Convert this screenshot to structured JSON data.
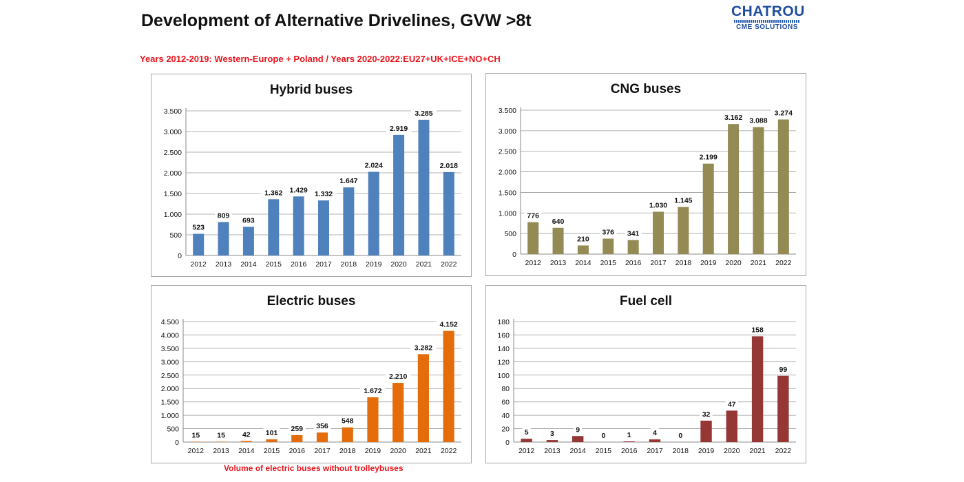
{
  "page": {
    "title": "Development of Alternative Drivelines, GVW >8t",
    "subtitle": "Years 2012-2019: Western-Europe + Poland / Years 2020-2022:EU27+UK+ICE+NO+CH",
    "footnote": "Volume of electric buses without trolleybuses"
  },
  "logo": {
    "name": "CHATROU",
    "tagline": "CME SOLUTIONS"
  },
  "chart_data": [
    {
      "type": "bar",
      "title": "Hybrid buses",
      "categories": [
        "2012",
        "2013",
        "2014",
        "2015",
        "2016",
        "2017",
        "2018",
        "2019",
        "2020",
        "2021",
        "2022"
      ],
      "values": [
        523,
        809,
        693,
        1362,
        1429,
        1332,
        1647,
        2024,
        2919,
        3285,
        2018
      ],
      "value_labels": [
        "523",
        "809",
        "693",
        "1.362",
        "1.429",
        "1.332",
        "1.647",
        "2.024",
        "2.919",
        "3.285",
        "2.018"
      ],
      "yticks": [
        0,
        500,
        1000,
        1500,
        2000,
        2500,
        3000,
        3500
      ],
      "ytick_labels": [
        "0",
        "500",
        "1.000",
        "1.500",
        "2.000",
        "2.500",
        "3.000",
        "3.500"
      ],
      "ylim": [
        0,
        3500
      ],
      "color": "#4f81bd",
      "xlabel": "",
      "ylabel": ""
    },
    {
      "type": "bar",
      "title": "CNG buses",
      "categories": [
        "2012",
        "2013",
        "2014",
        "2015",
        "2016",
        "2017",
        "2018",
        "2019",
        "2020",
        "2021",
        "2022"
      ],
      "values": [
        776,
        640,
        210,
        376,
        341,
        1030,
        1145,
        2199,
        3162,
        3088,
        3274
      ],
      "value_labels": [
        "776",
        "640",
        "210",
        "376",
        "341",
        "1.030",
        "1.145",
        "2.199",
        "3.162",
        "3.088",
        "3.274"
      ],
      "yticks": [
        0,
        500,
        1000,
        1500,
        2000,
        2500,
        3000,
        3500
      ],
      "ytick_labels": [
        "0",
        "500",
        "1.000",
        "1.500",
        "2.000",
        "2.500",
        "3.000",
        "3.500"
      ],
      "ylim": [
        0,
        3500
      ],
      "color": "#948a54",
      "xlabel": "",
      "ylabel": ""
    },
    {
      "type": "bar",
      "title": "Electric buses",
      "categories": [
        "2012",
        "2013",
        "2014",
        "2015",
        "2016",
        "2017",
        "2018",
        "2019",
        "2020",
        "2021",
        "2022"
      ],
      "values": [
        15,
        15,
        42,
        101,
        259,
        356,
        548,
        1672,
        2210,
        3282,
        4152
      ],
      "value_labels": [
        "15",
        "15",
        "42",
        "101",
        "259",
        "356",
        "548",
        "1.672",
        "2.210",
        "3.282",
        "4.152"
      ],
      "yticks": [
        0,
        500,
        1000,
        1500,
        2000,
        2500,
        3000,
        3500,
        4000,
        4500
      ],
      "ytick_labels": [
        "0",
        "500",
        "1.000",
        "1.500",
        "2.000",
        "2.500",
        "3.000",
        "3.500",
        "4.000",
        "4.500"
      ],
      "ylim": [
        0,
        4500
      ],
      "color": "#e46c0a",
      "xlabel": "",
      "ylabel": ""
    },
    {
      "type": "bar",
      "title": "Fuel cell",
      "categories": [
        "2012",
        "2013",
        "2014",
        "2015",
        "2016",
        "2017",
        "2018",
        "2019",
        "2020",
        "2021",
        "2022"
      ],
      "values": [
        5,
        3,
        9,
        0,
        1,
        4,
        0,
        32,
        47,
        158,
        99
      ],
      "value_labels": [
        "5",
        "3",
        "9",
        "0",
        "1",
        "4",
        "0",
        "32",
        "47",
        "158",
        "99"
      ],
      "yticks": [
        0,
        20,
        40,
        60,
        80,
        100,
        120,
        140,
        160,
        180
      ],
      "ytick_labels": [
        "0",
        "20",
        "40",
        "60",
        "80",
        "100",
        "120",
        "140",
        "160",
        "180"
      ],
      "ylim": [
        0,
        180
      ],
      "color": "#953735",
      "xlabel": "",
      "ylabel": ""
    }
  ]
}
